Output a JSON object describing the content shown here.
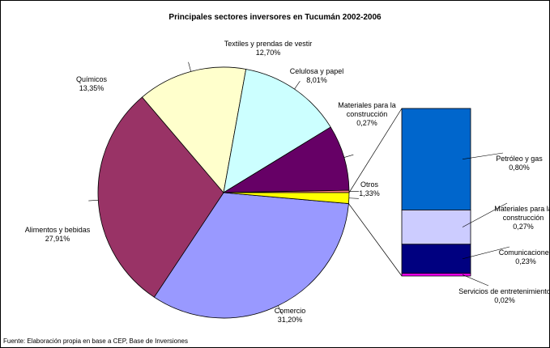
{
  "chart_data": {
    "type": "pie",
    "title": "Principales sectores inversores en Tucumán 2002-2006",
    "categories": [
      "Comercio",
      "Alimentos y bebidas",
      "Químicos",
      "Textiles y prendas de vestir",
      "Celulosa y papel",
      "Materiales para la construcción",
      "Otros"
    ],
    "values": [
      31.2,
      27.91,
      13.35,
      12.7,
      8.01,
      0.27,
      1.33
    ],
    "value_labels": [
      "31,20%",
      "27,91%",
      "13,35%",
      "12,70%",
      "8,01%",
      "0,27%",
      "1,33%"
    ],
    "colors": [
      "#9999ff",
      "#993366",
      "#ffffcc",
      "#ccffff",
      "#660066",
      "#ff8080",
      "#ffff00"
    ],
    "bar": {
      "categories": [
        "Petróleo y gas",
        "Materiales para la construcción",
        "Comunicaciones",
        "Servicios de entretenimiento"
      ],
      "values": [
        0.8,
        0.27,
        0.23,
        0.02
      ],
      "value_labels": [
        "0,80%",
        "0,27%",
        "0,23%",
        "0,02%"
      ],
      "colors": [
        "#0066cc",
        "#ccccff",
        "#000080",
        "#ff00ff"
      ]
    },
    "source": "Fuente: Elaboración propia en base a CEP, Base de Inversiones"
  }
}
